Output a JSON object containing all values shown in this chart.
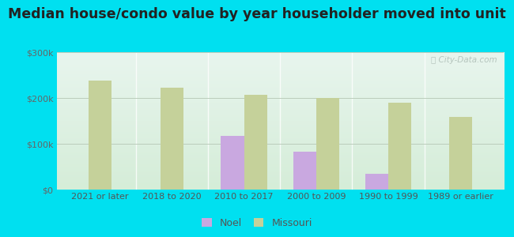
{
  "title": "Median house/condo value by year householder moved into unit",
  "categories": [
    "2021 or later",
    "2018 to 2020",
    "2010 to 2017",
    "2000 to 2009",
    "1990 to 1999",
    "1989 or earlier"
  ],
  "noel_values": [
    null,
    null,
    117000,
    82000,
    35000,
    null
  ],
  "missouri_values": [
    238000,
    222000,
    207000,
    200000,
    190000,
    158000
  ],
  "noel_color": "#c9a8e0",
  "missouri_color": "#c5d19a",
  "background_outer": "#00e0f0",
  "background_plot_top": "#e8f5ee",
  "background_plot_bottom": "#d5edd8",
  "ylim": [
    0,
    300000
  ],
  "yticks": [
    0,
    100000,
    200000,
    300000
  ],
  "ytick_labels": [
    "$0",
    "$100k",
    "$200k",
    "$300k"
  ],
  "bar_width": 0.32,
  "legend_labels": [
    "Noel",
    "Missouri"
  ],
  "title_fontsize": 12.5,
  "tick_fontsize": 8,
  "legend_fontsize": 9,
  "grid_color": "#bbccbb",
  "watermark": "ⓘ City-Data.com"
}
